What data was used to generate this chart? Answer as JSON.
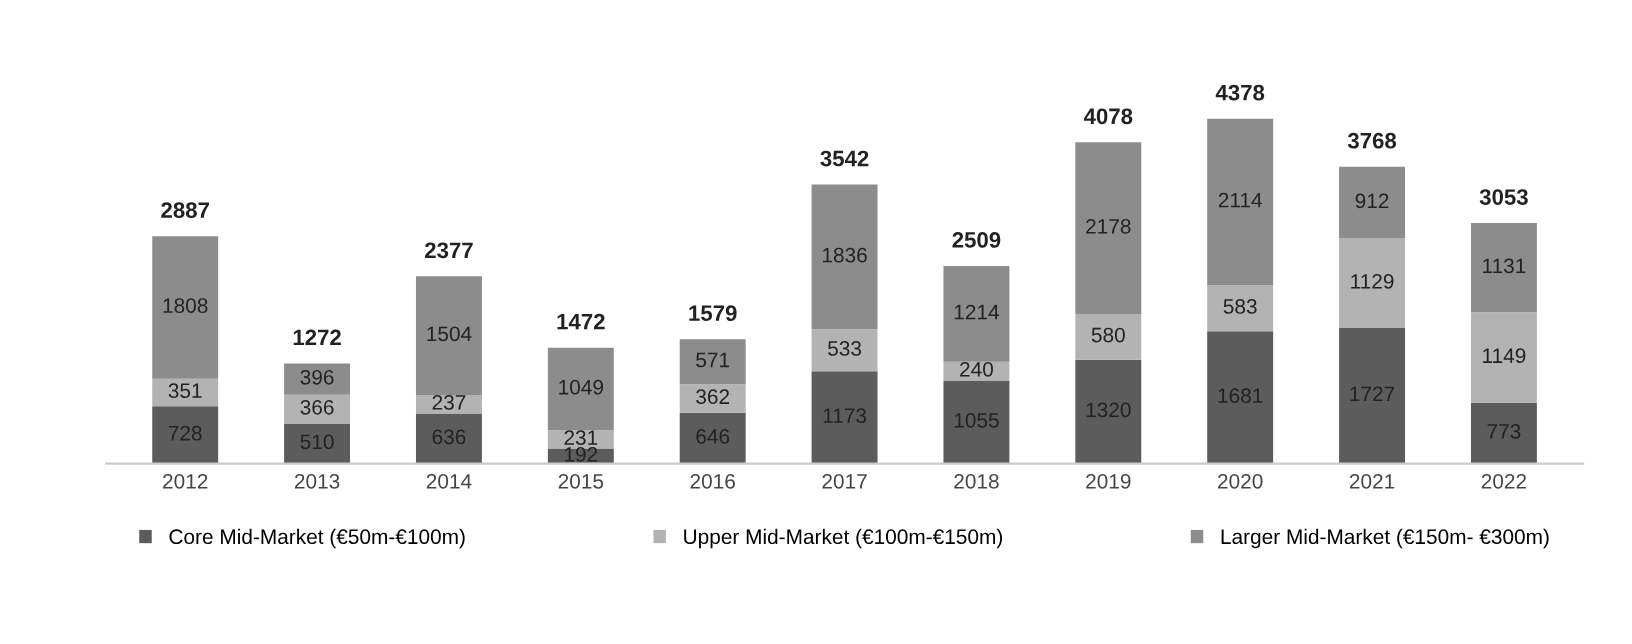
{
  "chart_data": {
    "type": "bar",
    "stacked": true,
    "data_labels": true,
    "legend": "bottom",
    "grid": false,
    "categories": [
      "2012",
      "2013",
      "2014",
      "2015",
      "2016",
      "2017",
      "2018",
      "2019",
      "2020",
      "2021",
      "2022"
    ],
    "series": [
      {
        "name": "Core Mid-Market (€50m-€100m)",
        "color": "#5c5c5c",
        "values": [
          728,
          510,
          636,
          192,
          646,
          1173,
          1055,
          1320,
          1681,
          1727,
          773
        ]
      },
      {
        "name": "Upper Mid-Market (€100m-€150m)",
        "color": "#b3b3b3",
        "values": [
          351,
          366,
          237,
          231,
          362,
          533,
          240,
          580,
          583,
          1129,
          1149
        ]
      },
      {
        "name": "Larger Mid-Market (€150m- €300m)",
        "color": "#8c8c8c",
        "values": [
          1808,
          396,
          1504,
          1049,
          571,
          1836,
          1214,
          2178,
          2114,
          912,
          1131
        ]
      }
    ],
    "totals": [
      "2887",
      "1272",
      "2377",
      "1472",
      "1579",
      "3542",
      "2509",
      "4078",
      "4378",
      "3768",
      "3053"
    ]
  }
}
